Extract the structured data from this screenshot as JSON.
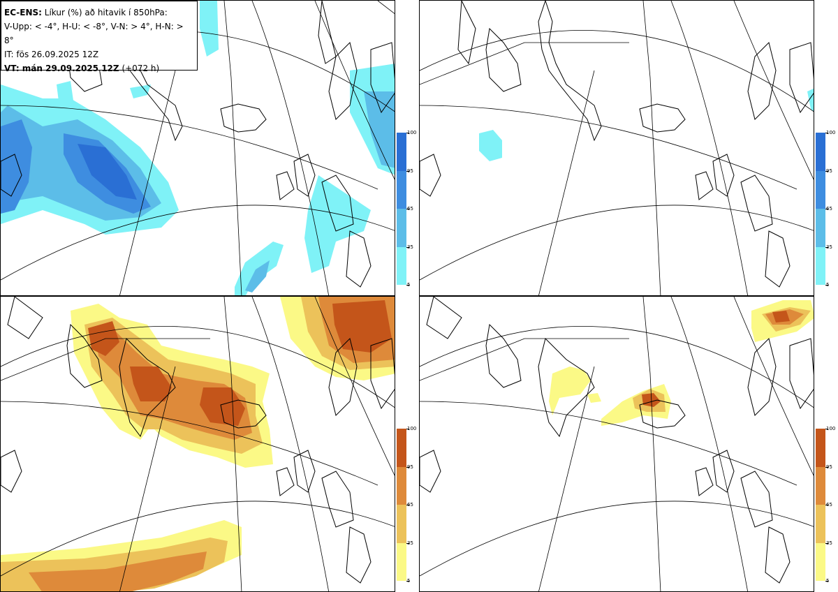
{
  "info": {
    "model": "EC-ENS:",
    "title": "Líkur (%) að hitavik í 850hPa:",
    "thresholds": "V-Upp: < -4°, H-U: < -8°, V-N: > 4°, H-N: > 8°",
    "init_time": "IT: fös 26.09.2025 12Z",
    "valid_label": "VT: mán 29.09.2025 12Z",
    "lead": "(+072 h)"
  },
  "colorbar_cold": {
    "ticks": [
      "100",
      "95",
      "65",
      "35",
      "5"
    ],
    "colors": [
      "#2a6fd4",
      "#3e8de0",
      "#5cbde8",
      "#7ff2f7"
    ]
  },
  "colorbar_warm": {
    "ticks": [
      "100",
      "95",
      "65",
      "35",
      "5"
    ],
    "colors": [
      "#c4551a",
      "#de8a3a",
      "#ecc25a",
      "#fbf986"
    ]
  },
  "panels": [
    {
      "id": "V-Upp",
      "threshold": "< -4°"
    },
    {
      "id": "H-U",
      "threshold": "< -8°"
    },
    {
      "id": "V-N",
      "threshold": "> 4°"
    },
    {
      "id": "H-N",
      "threshold": "> 8°"
    }
  ]
}
